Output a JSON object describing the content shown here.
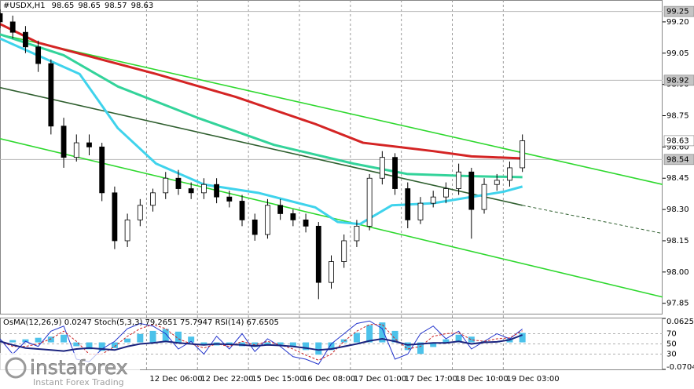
{
  "chart_data": [
    {
      "type": "candlestick",
      "title": "#USDX,H1",
      "header_values": [
        98.65,
        98.65,
        98.57,
        98.63
      ],
      "x": [
        0,
        4,
        8,
        12,
        16,
        20,
        24,
        28,
        32,
        36,
        40,
        44,
        48,
        52,
        56,
        60,
        64,
        68,
        72,
        76,
        80,
        84,
        88,
        92,
        96,
        100,
        104,
        108,
        112,
        116,
        120,
        124,
        128,
        132,
        136,
        140,
        144,
        148,
        152,
        156,
        160,
        164
      ],
      "open": [
        99.24,
        99.2,
        99.15,
        99.08,
        99.0,
        98.7,
        98.55,
        98.62,
        98.6,
        98.38,
        98.15,
        98.25,
        98.32,
        98.38,
        98.45,
        98.4,
        98.38,
        98.42,
        98.36,
        98.34,
        98.25,
        98.18,
        98.32,
        98.28,
        98.25,
        98.22,
        97.95,
        98.05,
        98.15,
        98.22,
        98.45,
        98.55,
        98.4,
        98.25,
        98.33,
        98.36,
        98.4,
        98.48,
        98.3,
        98.42,
        98.44,
        98.5
      ],
      "high": [
        99.26,
        99.23,
        99.18,
        99.11,
        99.02,
        98.74,
        98.66,
        98.66,
        98.62,
        98.41,
        98.28,
        98.35,
        98.4,
        98.48,
        98.49,
        98.43,
        98.45,
        98.45,
        98.39,
        98.37,
        98.28,
        98.35,
        98.35,
        98.3,
        98.28,
        98.24,
        98.08,
        98.18,
        98.25,
        98.47,
        98.58,
        98.57,
        98.43,
        98.36,
        98.39,
        98.43,
        98.52,
        98.5,
        98.45,
        98.47,
        98.53,
        98.66
      ],
      "low": [
        99.17,
        99.12,
        99.05,
        98.96,
        98.66,
        98.5,
        98.53,
        98.56,
        98.34,
        98.11,
        98.12,
        98.22,
        98.29,
        98.35,
        98.37,
        98.35,
        98.35,
        98.33,
        98.31,
        98.22,
        98.15,
        98.16,
        98.25,
        98.22,
        98.19,
        97.87,
        97.92,
        98.02,
        98.12,
        98.2,
        98.42,
        98.37,
        98.21,
        98.23,
        98.31,
        98.33,
        98.37,
        98.16,
        98.28,
        98.39,
        98.41,
        98.48
      ],
      "close": [
        99.2,
        99.15,
        99.08,
        99.0,
        98.7,
        98.55,
        98.62,
        98.6,
        98.38,
        98.15,
        98.25,
        98.32,
        98.38,
        98.45,
        98.4,
        98.38,
        98.42,
        98.36,
        98.34,
        98.25,
        98.18,
        98.32,
        98.28,
        98.25,
        98.22,
        97.95,
        98.05,
        98.15,
        98.22,
        98.45,
        98.55,
        98.4,
        98.25,
        98.33,
        98.36,
        98.4,
        98.48,
        98.3,
        98.42,
        98.44,
        98.5,
        98.63
      ],
      "xlim": [
        0,
        208
      ],
      "ylim": [
        97.8,
        99.305
      ],
      "yticks": [
        {
          "value": 99.2,
          "label": "99.20"
        },
        99.05,
        {
          "value": 98.9,
          "label": "98.90"
        },
        98.75,
        {
          "value": 98.6,
          "label": "98.60"
        },
        98.45,
        {
          "value": 98.3,
          "label": "98.30"
        },
        98.15,
        {
          "value": 98.0,
          "label": "98.00"
        },
        97.85
      ],
      "xticks": [
        {
          "value": 46,
          "label": "12 Dec 06:00"
        },
        {
          "value": 62,
          "label": "12 Dec 22:00"
        },
        {
          "value": 78,
          "label": "15 Dec 15:00"
        },
        {
          "value": 94,
          "label": "16 Dec 08:00"
        },
        {
          "value": 110,
          "label": "17 Dec 01:00"
        },
        {
          "value": 126,
          "label": "17 Dec 17:00"
        },
        {
          "value": 142,
          "label": "18 Dec 10:00"
        },
        {
          "value": 158,
          "label": "19 Dec 03:00"
        }
      ],
      "grid": true,
      "levels": [
        {
          "value": 99.25,
          "line": true,
          "color": "#c4c4c4"
        },
        {
          "value": 98.92,
          "line": true,
          "color": "#c4c4c4"
        },
        {
          "value": 98.63,
          "line": false,
          "color": "#ffffff"
        },
        {
          "value": 98.54,
          "line": true,
          "color": "#c4c4c4"
        }
      ],
      "lines": [
        {
          "color": "#d42424",
          "x": [
            0,
            12,
            49,
            74,
            99,
            114,
            136,
            148,
            164
          ],
          "values": [
            99.19,
            99.1,
            98.95,
            98.84,
            98.71,
            98.62,
            98.58,
            98.555,
            98.545
          ]
        },
        {
          "color": "#33d39a",
          "x": [
            0,
            20,
            37,
            62,
            86,
            111,
            128,
            148,
            164
          ],
          "values": [
            99.14,
            99.04,
            98.89,
            98.74,
            98.61,
            98.52,
            98.47,
            98.46,
            98.455
          ]
        },
        {
          "color": "#3fd3ec",
          "x": [
            0,
            25,
            37,
            49,
            64,
            81,
            99,
            106,
            113,
            123,
            136,
            148,
            158,
            164
          ],
          "values": [
            99.12,
            98.95,
            98.69,
            98.52,
            98.42,
            98.38,
            98.31,
            98.24,
            98.23,
            98.32,
            98.33,
            98.36,
            98.385,
            98.41
          ]
        }
      ],
      "trend_lines": [
        {
          "color": "#2ed82e",
          "x": [
            0,
            208
          ],
          "values": [
            99.14,
            98.42
          ]
        },
        {
          "color": "#2f5f2f",
          "x": [
            0,
            164,
            208
          ],
          "values": [
            98.885,
            98.32,
            98.185
          ],
          "dashed_from": 1
        },
        {
          "color": "#2ed82e",
          "x": [
            0,
            208
          ],
          "values": [
            98.64,
            97.88
          ]
        }
      ]
    },
    {
      "type": "oscillator",
      "title": "OsMA(12,26,9) 0.0247 Stoch(5,3,3) 79.2651 75.7947 RSI(14) 67.6505",
      "x": [
        0,
        4,
        8,
        12,
        16,
        20,
        24,
        28,
        32,
        36,
        40,
        44,
        48,
        52,
        56,
        60,
        64,
        68,
        72,
        76,
        80,
        84,
        88,
        92,
        96,
        100,
        104,
        108,
        112,
        116,
        120,
        124,
        128,
        132,
        136,
        140,
        144,
        148,
        152,
        156,
        160,
        164
      ],
      "xlim": [
        0,
        208
      ],
      "histogram": {
        "color": "#4cc2ea",
        "values": [
          0.004,
          0.006,
          0.008,
          0.012,
          0.015,
          0.02,
          -0.01,
          -0.018,
          -0.022,
          -0.015,
          0.01,
          0.022,
          0.03,
          0.035,
          0.028,
          0.015,
          -0.005,
          -0.008,
          -0.006,
          -0.01,
          -0.012,
          -0.008,
          -0.006,
          -0.012,
          -0.02,
          -0.032,
          -0.02,
          0.008,
          0.025,
          0.045,
          0.052,
          0.03,
          -0.02,
          -0.03,
          -0.012,
          0.008,
          0.02,
          0.015,
          0.004,
          0.002,
          0.01,
          0.0247
        ]
      },
      "ylim": [
        -0.0704,
        0.0625
      ],
      "yticks": [
        0.0625,
        -0.0704
      ],
      "y2lim": [
        0,
        100
      ],
      "y2ticks": [
        70,
        50,
        30
      ],
      "series": [
        {
          "color": "#2233cc",
          "axis": "y2",
          "values": [
            60,
            30,
            55,
            45,
            75,
            85,
            20,
            15,
            40,
            55,
            80,
            90,
            85,
            70,
            40,
            55,
            30,
            65,
            40,
            70,
            35,
            60,
            45,
            25,
            20,
            10,
            50,
            70,
            90,
            95,
            80,
            20,
            30,
            70,
            85,
            60,
            75,
            40,
            55,
            70,
            60,
            79.2651
          ]
        },
        {
          "color": "#cc2222",
          "axis": "y2",
          "dashed": true,
          "values": [
            55,
            45,
            45,
            50,
            60,
            75,
            55,
            30,
            30,
            45,
            65,
            80,
            88,
            80,
            60,
            50,
            42,
            50,
            45,
            55,
            48,
            55,
            48,
            40,
            28,
            18,
            30,
            55,
            75,
            88,
            88,
            60,
            40,
            45,
            65,
            70,
            72,
            58,
            55,
            60,
            62,
            75.7947
          ]
        },
        {
          "color": "#1a237e",
          "axis": "y2",
          "width": 2,
          "values": [
            55,
            48,
            42,
            40,
            38,
            36,
            40,
            42,
            40,
            38,
            45,
            50,
            52,
            55,
            52,
            50,
            48,
            50,
            49,
            48,
            46,
            48,
            47,
            45,
            42,
            38,
            40,
            45,
            50,
            56,
            60,
            55,
            48,
            50,
            52,
            52,
            55,
            50,
            53,
            54,
            58,
            67.6505
          ]
        }
      ]
    }
  ],
  "branding": {
    "name": "instaforex",
    "tagline": "Instant Forex Trading"
  }
}
